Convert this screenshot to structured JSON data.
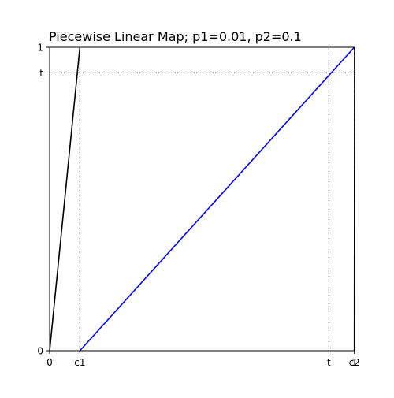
{
  "chart_data": {
    "type": "line",
    "title": "Piecewise Linear Map; p1=0.01, p2=0.1",
    "xlim": [
      0,
      1
    ],
    "ylim": [
      0,
      1
    ],
    "grid": false,
    "legend": "none",
    "params": {
      "p1": 0.01,
      "p2": 0.1,
      "t": 0.9158,
      "c1": 0.0992,
      "c2": 0.9992
    },
    "x_ticks": [
      {
        "value": 0,
        "label": "0"
      },
      {
        "value": 0.0992,
        "label": "c1"
      },
      {
        "value": 0.9158,
        "label": "t"
      },
      {
        "value": 0.9992,
        "label": "c2"
      },
      {
        "value": 1,
        "label": "1"
      }
    ],
    "y_ticks": [
      {
        "value": 0,
        "label": "0"
      },
      {
        "value": 0.9158,
        "label": "t"
      },
      {
        "value": 1,
        "label": "1"
      }
    ],
    "series": [
      {
        "color": "#000000",
        "x": [
          0,
          0.0992
        ],
        "y": [
          0,
          1
        ]
      },
      {
        "color": "#0000ff",
        "x": [
          0.0992,
          0.9992
        ],
        "y": [
          0,
          1
        ]
      },
      {
        "color": "#000000",
        "x": [
          0.9992,
          1
        ],
        "y": [
          0,
          1
        ]
      }
    ],
    "reference_lines": [
      {
        "orientation": "vertical",
        "value": 0.0992,
        "style": "dashed",
        "color": "#000000"
      },
      {
        "orientation": "vertical",
        "value": 0.9158,
        "style": "dashed",
        "color": "#000000"
      },
      {
        "orientation": "vertical",
        "value": 0.9992,
        "style": "dashed",
        "color": "#000000"
      },
      {
        "orientation": "horizontal",
        "value": 0.9158,
        "style": "dashed",
        "color": "#000000"
      }
    ]
  }
}
